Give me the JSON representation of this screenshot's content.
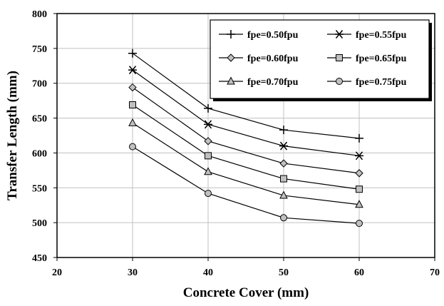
{
  "chart_data": {
    "type": "line",
    "title": "",
    "xlabel": "Concrete Cover (mm)",
    "ylabel": "Transfer Length (mm)",
    "xlim": [
      20,
      70
    ],
    "ylim": [
      450,
      800
    ],
    "x_ticks": [
      20,
      30,
      40,
      50,
      60,
      70
    ],
    "y_ticks": [
      450,
      500,
      550,
      600,
      650,
      700,
      750,
      800
    ],
    "x_tick_labels": [
      "20",
      "30",
      "40",
      "50",
      "60",
      "70"
    ],
    "y_tick_labels": [
      "450",
      "500",
      "550",
      "600",
      "650",
      "700",
      "750",
      "800"
    ],
    "grid": true,
    "legend_position": "top-right",
    "x": [
      30,
      40,
      50,
      60
    ],
    "series": [
      {
        "name": "fpe=0.50fpu",
        "marker": "plus",
        "values": [
          743,
          664,
          633,
          621
        ]
      },
      {
        "name": "fpe=0.55fpu",
        "marker": "star",
        "values": [
          719,
          641,
          610,
          596
        ]
      },
      {
        "name": "fpe=0.60fpu",
        "marker": "diamond",
        "values": [
          694,
          617,
          585,
          571
        ]
      },
      {
        "name": "fpe=0.65fpu",
        "marker": "square",
        "values": [
          669,
          596,
          563,
          548
        ]
      },
      {
        "name": "fpe=0.70fpu",
        "marker": "triangle",
        "values": [
          643,
          573,
          539,
          526
        ]
      },
      {
        "name": "fpe=0.75fpu",
        "marker": "circle",
        "values": [
          609,
          542,
          507,
          499
        ]
      }
    ],
    "colors": {
      "line": "#000000",
      "marker_fill": "#c0c0c0",
      "grid": "#c0c0c0"
    }
  }
}
